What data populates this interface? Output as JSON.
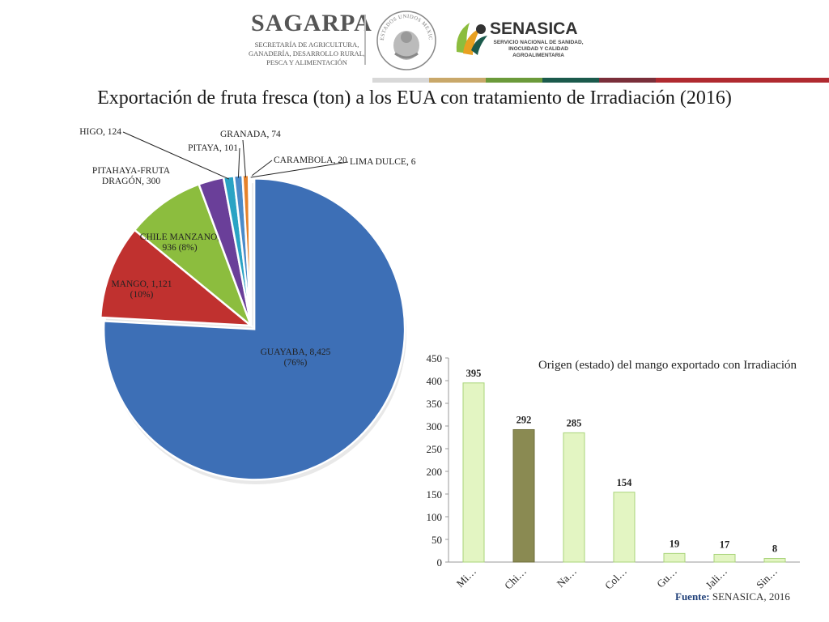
{
  "header": {
    "sagarpa_name": "SAGARPA",
    "sagarpa_subtitle": "SECRETARÍA DE AGRICULTURA,\nGANADERÍA, DESARROLLO RURAL,\nPESCA Y ALIMENTACIÓN",
    "seal_text": "ESTADOS UNIDOS MEXICANOS",
    "senasica_name": "SENASICA",
    "senasica_subtitle": "SERVICIO NACIONAL DE SANIDAD,\nINOCUIDAD Y CALIDAD\nAGROALIMENTARIA",
    "band_colors": [
      "#d8d8d8",
      "#c9a86a",
      "#6b9a3a",
      "#1b5a4c",
      "#7a2f3a",
      "#b02a30"
    ]
  },
  "title": "Exportación de fruta fresca (ton) a los EUA con tratamiento de Irradiación (2016)",
  "source_label": "Fuente:",
  "source_value": "SENASICA, 2016",
  "chart_data": [
    {
      "type": "pie",
      "slices": [
        {
          "label": "GUAYABA, 8,425",
          "pct": "(76%)",
          "value": 8425,
          "color": "#3d6fb6"
        },
        {
          "label": "MANGO, 1,121",
          "pct": "(10%)",
          "value": 1121,
          "color": "#c0312f"
        },
        {
          "label": "CHILE MANZANO,",
          "label2": "936",
          "pct": "(8%)",
          "value": 936,
          "color": "#8cbd3e"
        },
        {
          "label": "PITAHAYA-FRUTA",
          "label2": "DRAGÓN, 300",
          "value": 300,
          "color": "#6a3f99"
        },
        {
          "label": "HIGO, 124",
          "value": 124,
          "color": "#2aa3c4"
        },
        {
          "label": "PITAYA, 101",
          "value": 101,
          "color": "#4b8bc9"
        },
        {
          "label": "GRANADA, 74",
          "value": 74,
          "color": "#e5822b"
        },
        {
          "label": "CARAMBOLA, 20",
          "value": 20,
          "color": "#8fb1dd"
        },
        {
          "label": "LIMA DULCE, 6",
          "value": 6,
          "color": "#c8c8c8"
        }
      ]
    },
    {
      "type": "bar",
      "title": "Origen (estado) del mango exportado con Irradiación",
      "categories": [
        "Mi…",
        "Chi…",
        "Na…",
        "Col…",
        "Gu…",
        "Jali…",
        "Sin…"
      ],
      "values": [
        395,
        292,
        285,
        154,
        19,
        17,
        8
      ],
      "highlight_index": 1,
      "ylim": [
        0,
        450
      ],
      "yticks": [
        0,
        50,
        100,
        150,
        200,
        250,
        300,
        350,
        400,
        450
      ],
      "bar_color": "#e3f5c2",
      "highlight_color": "#8a8a52"
    }
  ]
}
